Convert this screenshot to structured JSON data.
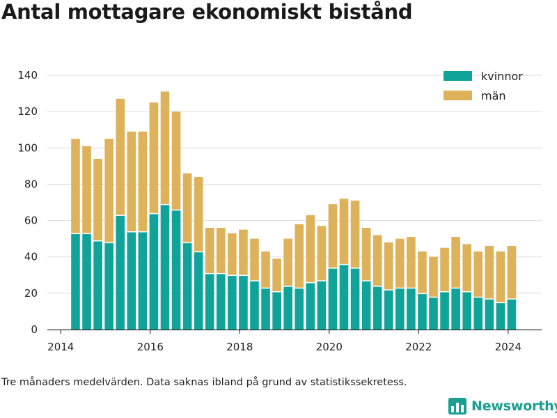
{
  "title": "Antal mottagare ekonomiskt bistånd",
  "note": "Tre månaders medelvärden. Data saknas ibland på grund av statistikssekretess.",
  "brand": "Newsworthy",
  "colors": {
    "kvinnor": "#0fa39a",
    "man": "#ddb25a",
    "grid": "#dddddd",
    "axis": "#333333",
    "brand": "#1b9e8f"
  },
  "chart_data": {
    "type": "bar",
    "stacked": true,
    "x_unit": "year",
    "ylim": [
      0,
      145
    ],
    "yticks": [
      0,
      20,
      40,
      60,
      80,
      100,
      120,
      140
    ],
    "xlim": [
      2013.7,
      2024.75
    ],
    "xticks": [
      2014,
      2016,
      2018,
      2020,
      2022,
      2024
    ],
    "xtick_labels": [
      "2014",
      "2016",
      "2018",
      "2020",
      "2022",
      "2024"
    ],
    "legend_position": "top-right",
    "grid": true,
    "x": [
      2014.33,
      2014.58,
      2014.83,
      2015.08,
      2015.33,
      2015.58,
      2015.83,
      2016.08,
      2016.33,
      2016.58,
      2016.83,
      2017.08,
      2017.33,
      2017.58,
      2017.83,
      2018.08,
      2018.33,
      2018.58,
      2018.83,
      2019.08,
      2019.33,
      2019.58,
      2019.83,
      2020.08,
      2020.33,
      2020.58,
      2020.83,
      2021.08,
      2021.33,
      2021.58,
      2021.83,
      2022.08,
      2022.33,
      2022.58,
      2022.83,
      2023.08,
      2023.33,
      2023.58,
      2023.83,
      2024.08
    ],
    "series": [
      {
        "name": "kvinnor",
        "values": [
          53,
          53,
          49,
          48,
          63,
          54,
          54,
          64,
          69,
          66,
          48,
          43,
          31,
          31,
          30,
          30,
          27,
          23,
          21,
          24,
          23,
          26,
          27,
          34,
          36,
          34,
          27,
          24,
          22,
          23,
          23,
          20,
          18,
          21,
          23,
          21,
          18,
          17,
          15,
          17
        ]
      },
      {
        "name": "män",
        "values": [
          52,
          48,
          45,
          57,
          64,
          55,
          55,
          61,
          62,
          54,
          38,
          41,
          25,
          25,
          23,
          25,
          23,
          20,
          18,
          26,
          35,
          37,
          30,
          35,
          36,
          37,
          29,
          28,
          26,
          27,
          28,
          23,
          22,
          24,
          28,
          26,
          25,
          29,
          28,
          29
        ]
      }
    ]
  }
}
